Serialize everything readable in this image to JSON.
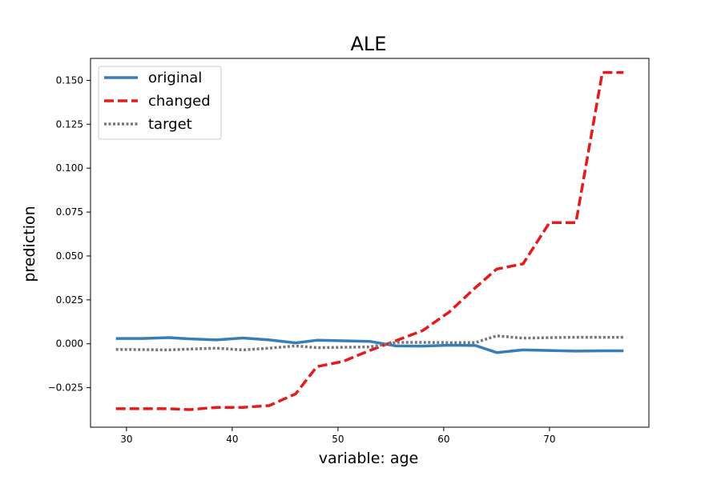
{
  "chart_data": {
    "type": "line",
    "title": "ALE",
    "xlabel": "variable: age",
    "ylabel": "prediction",
    "xlim": [
      26.6,
      79.4
    ],
    "ylim": [
      -0.0475,
      0.1625
    ],
    "xticks": [
      30,
      40,
      50,
      60,
      70
    ],
    "xtick_labels": [
      "30",
      "40",
      "50",
      "60",
      "70"
    ],
    "yticks": [
      -0.025,
      0.0,
      0.025,
      0.05,
      0.075,
      0.1,
      0.125,
      0.15
    ],
    "ytick_labels": [
      "−0.025",
      "0.000",
      "0.025",
      "0.050",
      "0.075",
      "0.100",
      "0.125",
      "0.150"
    ],
    "grid": false,
    "legend_position": "top-left",
    "series": [
      {
        "name": "original",
        "color": "#377eb8",
        "style": "solid",
        "x": [
          29,
          31.5,
          34,
          36,
          38.5,
          41,
          43.5,
          46,
          48,
          50.5,
          53,
          55.5,
          58,
          60.5,
          63,
          65,
          67.5,
          70,
          72.5,
          75,
          77
        ],
        "y": [
          0.003,
          0.003,
          0.0035,
          0.0028,
          0.0022,
          0.0033,
          0.0022,
          0.0005,
          0.002,
          0.0017,
          0.0014,
          -0.0012,
          -0.0013,
          -0.0008,
          -0.001,
          -0.005,
          -0.0035,
          -0.0038,
          -0.0042,
          -0.004,
          -0.004
        ]
      },
      {
        "name": "changed",
        "color": "#e41a1c",
        "style": "dashed",
        "x": [
          29,
          31.5,
          34,
          36,
          38.5,
          41,
          43.5,
          46,
          48,
          50.5,
          53,
          55.5,
          58,
          60.5,
          63,
          65,
          67.5,
          70,
          72.5,
          75,
          77
        ],
        "y": [
          -0.037,
          -0.037,
          -0.037,
          -0.0375,
          -0.0362,
          -0.0362,
          -0.0352,
          -0.0285,
          -0.013,
          -0.01,
          -0.0038,
          0.0018,
          0.0075,
          0.018,
          0.032,
          0.0425,
          0.0455,
          0.069,
          0.069,
          0.1545,
          0.1545
        ]
      },
      {
        "name": "target",
        "color": "#777777",
        "style": "dotted",
        "x": [
          29,
          31.5,
          34,
          36,
          38.5,
          41,
          43.5,
          46,
          48,
          50.5,
          53,
          55.5,
          58,
          60.5,
          63,
          65,
          67.5,
          70,
          72.5,
          75,
          77
        ],
        "y": [
          -0.0032,
          -0.0033,
          -0.0035,
          -0.003,
          -0.0025,
          -0.0035,
          -0.0025,
          -0.0012,
          -0.0022,
          -0.002,
          -0.0018,
          0.0008,
          0.0008,
          0.0007,
          0.0007,
          0.0045,
          0.0032,
          0.0035,
          0.0037,
          0.0037,
          0.0037
        ]
      }
    ]
  }
}
